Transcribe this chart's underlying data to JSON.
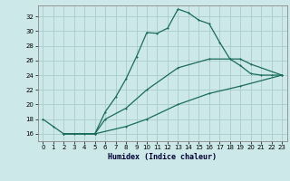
{
  "xlabel": "Humidex (Indice chaleur)",
  "bg_color": "#cce8e8",
  "grid_color": "#aacccc",
  "line_color": "#1a6b5a",
  "xlim": [
    -0.5,
    23.5
  ],
  "ylim": [
    15.0,
    33.5
  ],
  "yticks": [
    16,
    18,
    20,
    22,
    24,
    26,
    28,
    30,
    32
  ],
  "xticks": [
    0,
    1,
    2,
    3,
    4,
    5,
    6,
    7,
    8,
    9,
    10,
    11,
    12,
    13,
    14,
    15,
    16,
    17,
    18,
    19,
    20,
    21,
    22,
    23
  ],
  "line1_x": [
    0,
    1,
    2,
    3,
    4,
    5,
    6,
    7,
    8,
    9,
    10,
    11,
    12,
    13,
    14,
    15,
    16,
    17,
    18,
    19,
    20,
    21,
    22,
    23
  ],
  "line1_y": [
    18.0,
    17.0,
    16.0,
    16.0,
    16.0,
    16.0,
    19.0,
    21.0,
    23.5,
    26.5,
    29.8,
    29.7,
    30.4,
    33.0,
    32.5,
    31.5,
    31.0,
    28.5,
    26.2,
    25.3,
    24.2,
    24.0,
    24.0,
    24.0
  ],
  "line2_x": [
    2,
    5,
    6,
    8,
    10,
    13,
    16,
    19,
    20,
    23
  ],
  "line2_y": [
    16.0,
    16.0,
    18.0,
    19.5,
    22.0,
    25.0,
    26.2,
    26.2,
    25.5,
    24.0
  ],
  "line3_x": [
    2,
    5,
    8,
    10,
    13,
    16,
    19,
    23
  ],
  "line3_y": [
    16.0,
    16.0,
    17.0,
    18.0,
    20.0,
    21.5,
    22.5,
    24.0
  ]
}
